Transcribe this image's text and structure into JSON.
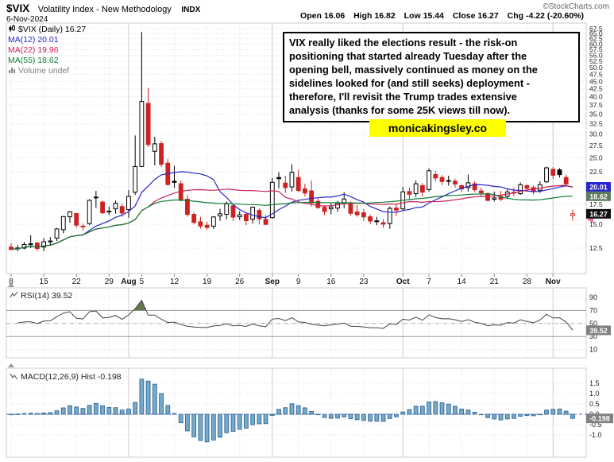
{
  "header": {
    "symbol": "$VIX",
    "title": "Volatility Index - New Methodology",
    "exchange": "INDX",
    "date": "6-Nov-2024",
    "credit": "©StockCharts.com",
    "quote": {
      "open_label": "Open",
      "open": "16.06",
      "high_label": "High",
      "high": "16.82",
      "low_label": "Low",
      "low": "15.44",
      "close_label": "Close",
      "close": "16.27",
      "chg_label": "Chg",
      "chg": "-4.22 (-20.60%)"
    }
  },
  "legend": {
    "series": "$VIX (Daily) 16.27",
    "ma12": "MA(12) 20.01",
    "ma22": "MA(22) 19.96",
    "ma55": "MA(55) 18.62",
    "volume": "Volume undef"
  },
  "annotation": {
    "lines": [
      "VIX really liked the elections result - the risk-on",
      "positioning that started already Tuesday after the",
      "opening bell, massively continued as money on the",
      "sidelines looked for (and still seeks) deployment -",
      "therefore, I'll revisit the Trump trades extensive",
      "analysis (thanks for some 25K views till now)."
    ]
  },
  "promo": {
    "text": "monicakingsley.co",
    "bg": "#ffff00"
  },
  "chart_data": {
    "type": "candlestick",
    "symbol": "$VIX",
    "timeframe": "Daily",
    "last_close": 16.27,
    "y_axis": {
      "scale": "log",
      "tick_min": 12.5,
      "tick_max": 67.5,
      "tick_step": 2.5
    },
    "style": {
      "up_color": "#000000",
      "down_color": "#cc2222"
    },
    "x_ticks": [
      {
        "i": 0,
        "label": "8"
      },
      {
        "i": 5,
        "label": "15"
      },
      {
        "i": 10,
        "label": "22"
      },
      {
        "i": 15,
        "label": "29"
      },
      {
        "i": 18,
        "label": "Aug",
        "month": true
      },
      {
        "i": 20,
        "label": "5"
      },
      {
        "i": 25,
        "label": "12"
      },
      {
        "i": 30,
        "label": "19"
      },
      {
        "i": 35,
        "label": "26"
      },
      {
        "i": 40,
        "label": "Sep",
        "month": true
      },
      {
        "i": 44,
        "label": "9"
      },
      {
        "i": 49,
        "label": "16"
      },
      {
        "i": 54,
        "label": "23"
      },
      {
        "i": 60,
        "label": "Oct",
        "month": true
      },
      {
        "i": 64,
        "label": "7"
      },
      {
        "i": 69,
        "label": "14"
      },
      {
        "i": 74,
        "label": "21"
      },
      {
        "i": 79,
        "label": "28"
      },
      {
        "i": 83,
        "label": "Nov",
        "month": true
      }
    ],
    "dates": [
      "Jul 8",
      "Jul 9",
      "Jul 10",
      "Jul 11",
      "Jul 12",
      "Jul 15",
      "Jul 16",
      "Jul 17",
      "Jul 18",
      "Jul 19",
      "Jul 22",
      "Jul 23",
      "Jul 24",
      "Jul 25",
      "Jul 26",
      "Jul 29",
      "Jul 30",
      "Jul 31",
      "Aug 1",
      "Aug 2",
      "Aug 5",
      "Aug 6",
      "Aug 7",
      "Aug 8",
      "Aug 9",
      "Aug 12",
      "Aug 13",
      "Aug 14",
      "Aug 15",
      "Aug 16",
      "Aug 19",
      "Aug 20",
      "Aug 21",
      "Aug 22",
      "Aug 23",
      "Aug 26",
      "Aug 27",
      "Aug 28",
      "Aug 29",
      "Aug 30",
      "Sep 3",
      "Sep 4",
      "Sep 5",
      "Sep 6",
      "Sep 9",
      "Sep 10",
      "Sep 11",
      "Sep 12",
      "Sep 13",
      "Sep 16",
      "Sep 17",
      "Sep 18",
      "Sep 19",
      "Sep 20",
      "Sep 23",
      "Sep 24",
      "Sep 25",
      "Sep 26",
      "Sep 27",
      "Sep 30",
      "Oct 1",
      "Oct 2",
      "Oct 3",
      "Oct 4",
      "Oct 7",
      "Oct 8",
      "Oct 9",
      "Oct 10",
      "Oct 11",
      "Oct 14",
      "Oct 15",
      "Oct 16",
      "Oct 17",
      "Oct 18",
      "Oct 21",
      "Oct 22",
      "Oct 23",
      "Oct 24",
      "Oct 25",
      "Oct 28",
      "Oct 29",
      "Oct 30",
      "Oct 31",
      "Nov 1",
      "Nov 4",
      "Nov 5",
      "Nov 6"
    ],
    "open": [
      12.6,
      12.5,
      12.5,
      12.9,
      13.0,
      12.6,
      13.2,
      13.5,
      14.4,
      15.9,
      16.3,
      14.8,
      15.1,
      18.5,
      17.8,
      16.6,
      16.9,
      17.2,
      16.8,
      19.2,
      23.4,
      38.0,
      26.3,
      27.9,
      24.0,
      20.9,
      20.5,
      18.2,
      16.2,
      15.3,
      14.9,
      14.8,
      16.0,
      16.2,
      17.3,
      15.9,
      16.2,
      15.6,
      16.7,
      15.6,
      15.8,
      21.5,
      20.6,
      20.0,
      21.5,
      19.7,
      19.4,
      17.9,
      17.1,
      16.9,
      17.0,
      17.6,
      17.7,
      16.5,
      16.4,
      15.9,
      15.4,
      15.2,
      15.1,
      17.0,
      16.9,
      19.3,
      19.0,
      20.2,
      19.6,
      22.0,
      21.5,
      21.0,
      20.9,
      20.2,
      19.9,
      20.5,
      19.4,
      19.0,
      18.2,
      18.6,
      18.6,
      19.2,
      19.0,
      20.2,
      19.9,
      19.5,
      20.8,
      22.9,
      22.8,
      21.5,
      16.06
    ],
    "high": [
      13.0,
      12.8,
      13.1,
      13.8,
      13.1,
      13.5,
      13.6,
      14.6,
      16.0,
      16.6,
      16.4,
      15.1,
      18.2,
      19.4,
      18.0,
      17.2,
      18.0,
      17.6,
      19.5,
      29.7,
      65.7,
      42.8,
      29.4,
      28.5,
      24.8,
      23.5,
      21.0,
      18.8,
      16.4,
      15.9,
      15.3,
      16.0,
      16.9,
      17.9,
      17.4,
      16.6,
      16.4,
      17.2,
      17.0,
      16.1,
      21.4,
      22.4,
      21.8,
      23.8,
      22.8,
      20.5,
      21.0,
      18.3,
      17.4,
      17.6,
      18.0,
      19.2,
      17.9,
      17.4,
      16.9,
      16.2,
      15.9,
      15.6,
      17.2,
      17.5,
      20.0,
      19.9,
      21.0,
      20.6,
      23.1,
      22.6,
      21.9,
      21.8,
      21.3,
      20.4,
      22.0,
      20.9,
      19.9,
      19.2,
      19.3,
      19.4,
      19.6,
      19.9,
      20.7,
      20.4,
      20.2,
      20.9,
      23.4,
      23.3,
      23.1,
      22.0,
      16.82
    ],
    "low": [
      12.3,
      12.2,
      12.4,
      12.5,
      12.2,
      12.2,
      12.8,
      13.2,
      14.0,
      15.2,
      14.6,
      14.3,
      14.9,
      17.0,
      16.2,
      16.1,
      16.3,
      15.9,
      15.8,
      18.8,
      23.3,
      27.2,
      23.6,
      23.3,
      20.2,
      19.9,
      17.9,
      15.9,
      15.0,
      14.5,
      14.4,
      14.5,
      15.4,
      15.6,
      15.4,
      15.5,
      14.9,
      15.1,
      15.0,
      14.9,
      15.7,
      19.8,
      19.1,
      19.3,
      19.2,
      18.6,
      17.2,
      16.9,
      16.1,
      16.2,
      16.5,
      17.0,
      16.0,
      15.9,
      15.4,
      15.0,
      14.9,
      14.6,
      14.5,
      16.0,
      16.6,
      18.1,
      18.5,
      18.6,
      19.3,
      20.9,
      20.3,
      20.2,
      19.9,
      19.2,
      19.3,
      19.2,
      18.6,
      17.9,
      17.9,
      17.9,
      18.2,
      18.6,
      18.8,
      19.3,
      18.9,
      19.1,
      20.6,
      21.3,
      21.5,
      20.1,
      15.44
    ],
    "close": [
      12.37,
      12.51,
      12.85,
      12.92,
      12.46,
      13.12,
      13.19,
      14.48,
      15.93,
      16.52,
      14.91,
      14.72,
      18.04,
      18.46,
      16.39,
      16.6,
      17.63,
      16.36,
      18.59,
      23.39,
      38.57,
      27.71,
      27.85,
      23.79,
      20.37,
      20.71,
      18.04,
      16.19,
      15.23,
      14.8,
      14.65,
      15.88,
      16.27,
      17.56,
      15.86,
      16.15,
      15.43,
      17.11,
      15.65,
      15.0,
      20.72,
      21.31,
      19.9,
      22.38,
      19.45,
      19.08,
      17.69,
      17.07,
      16.56,
      17.14,
      17.61,
      18.23,
      16.33,
      16.15,
      15.89,
      15.39,
      15.41,
      15.02,
      16.96,
      16.73,
      19.26,
      18.9,
      20.49,
      19.21,
      22.64,
      21.42,
      20.86,
      20.93,
      20.46,
      19.7,
      20.64,
      19.58,
      19.11,
      18.03,
      18.37,
      18.2,
      19.24,
      19.08,
      20.33,
      19.8,
      19.34,
      20.35,
      23.16,
      21.88,
      21.98,
      20.49,
      16.27
    ],
    "overlays": [
      {
        "name": "MA(12)",
        "period": 12,
        "color": "#2727cc",
        "last": 20.01
      },
      {
        "name": "MA(22)",
        "period": 22,
        "color": "#cc2255",
        "last": 19.96
      },
      {
        "name": "MA(55)",
        "period": 55,
        "color": "#0e7d32",
        "last": 18.62
      }
    ],
    "axis_markers": [
      {
        "type": "arrow",
        "value": 19.96,
        "color": "#cc2255"
      },
      {
        "type": "arrow",
        "value": 15.55,
        "color": "#f06ba8"
      },
      {
        "type": "box",
        "text": "20.01",
        "value": 20.01,
        "bg": "#2727cc"
      },
      {
        "type": "box",
        "text": "18.62",
        "value": 18.62,
        "bg": "#5f7a5f"
      },
      {
        "type": "box",
        "text": "16.27",
        "value": 16.27,
        "bg": "#101010"
      }
    ],
    "panels": {
      "rsi": {
        "type": "line",
        "label": "RSI(14) 39.52",
        "period": 14,
        "last": 39.52,
        "yticks": [
          90,
          70,
          50,
          30,
          10
        ],
        "overbought": 70,
        "oversold": 30,
        "line_color": "#444444",
        "fill_color": "#50683a",
        "box_bg": "#808080"
      },
      "macd": {
        "type": "histogram",
        "label": "MACD(12,26,9) Hist -0.198",
        "params": [
          12,
          26,
          9
        ],
        "last": -0.198,
        "yticks": [
          "1.5",
          "1.0",
          "0.5",
          "0.0",
          "-0.5",
          "-1.0"
        ],
        "bar_fill": "#76aacd",
        "bar_stroke": "#3a6d99",
        "zero_color": "#4862c8",
        "box_bg": "#808080"
      }
    }
  }
}
